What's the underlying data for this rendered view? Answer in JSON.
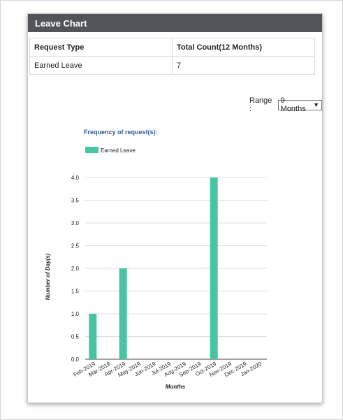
{
  "panel": {
    "title": "Leave Chart"
  },
  "summary": {
    "headers": [
      "Request Type",
      "Total Count(12 Months)"
    ],
    "rows": [
      [
        "Earned Leave",
        "7"
      ]
    ]
  },
  "range": {
    "label": "Range :",
    "value": "9 Months"
  },
  "icons": {
    "dropdown": "caret-down-icon"
  },
  "colors": {
    "bar": "#48c4a2",
    "header": "#515559",
    "title": "#2f5a8c"
  },
  "chart_data": {
    "type": "bar",
    "title": "Frequency of request(s):",
    "xlabel": "Months",
    "ylabel": "Number of Day(s)",
    "categories": [
      "Feb-2019",
      "Mar-2019",
      "Apr-2019",
      "May-2019",
      "Jun-2019",
      "Jul-2019",
      "Aug-2019",
      "Sep-2019",
      "Oct-2019",
      "Nov-2019",
      "Dec-2019",
      "Jan-2020"
    ],
    "series": [
      {
        "name": "Earned Leave",
        "values": [
          1,
          0,
          2,
          0,
          0,
          0,
          0,
          0,
          4,
          0,
          0,
          0
        ]
      }
    ],
    "ylim": [
      0,
      4
    ],
    "yticks": [
      "0.0",
      "0.5",
      "1.0",
      "1.5",
      "2.0",
      "2.5",
      "3.0",
      "3.5",
      "4.0"
    ],
    "grid": true,
    "legend": "top-left"
  }
}
